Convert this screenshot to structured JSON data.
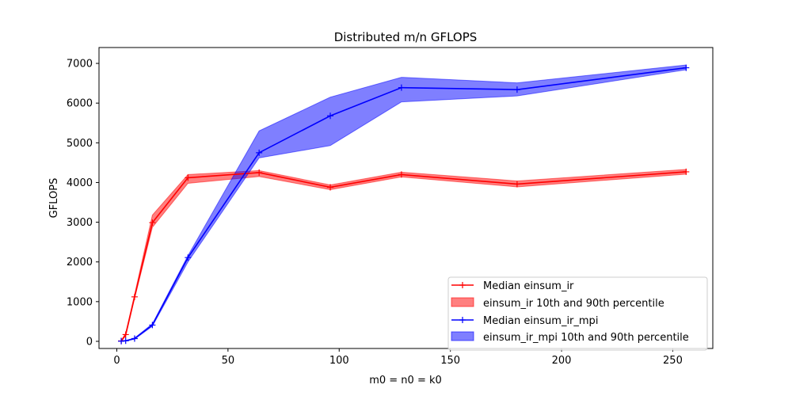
{
  "chart_data": {
    "type": "line",
    "title": "Distributed m/n GFLOPS",
    "xlabel": "m0 = n0 = k0",
    "ylabel": "GFLOPS",
    "xlim": [
      -8,
      268
    ],
    "ylim": [
      -180,
      7400
    ],
    "x_ticks": [
      0,
      50,
      100,
      150,
      200,
      250
    ],
    "y_ticks": [
      0,
      1000,
      2000,
      3000,
      4000,
      5000,
      6000,
      7000
    ],
    "grid": false,
    "legend_position": "lower-right",
    "series": [
      {
        "name": "Median einsum_ir",
        "band_name": "einsum_ir 10th and 90th percentile",
        "color": "#ff0000",
        "band_color": "#ff0000",
        "x": [
          2,
          4,
          8,
          16,
          32,
          64,
          96,
          128,
          180,
          256
        ],
        "median": [
          10,
          170,
          1120,
          2990,
          4120,
          4250,
          3880,
          4200,
          3960,
          4270
        ],
        "p10": [
          5,
          130,
          1080,
          2870,
          3980,
          4150,
          3820,
          4140,
          3890,
          4210
        ],
        "p90": [
          20,
          210,
          1180,
          3180,
          4200,
          4300,
          3940,
          4260,
          4040,
          4330
        ]
      },
      {
        "name": "Median einsum_ir_mpi",
        "band_name": "einsum_ir_mpi 10th and 90th percentile",
        "color": "#0000ff",
        "band_color": "#0000ff",
        "x": [
          2,
          4,
          8,
          16,
          32,
          64,
          96,
          128,
          180,
          256
        ],
        "median": [
          5,
          15,
          70,
          410,
          2110,
          4750,
          5680,
          6390,
          6340,
          6890
        ],
        "p10": [
          2,
          10,
          55,
          380,
          2000,
          4620,
          4930,
          6030,
          6180,
          6840
        ],
        "p90": [
          8,
          20,
          85,
          440,
          2160,
          5300,
          6150,
          6650,
          6510,
          6960
        ]
      }
    ]
  }
}
